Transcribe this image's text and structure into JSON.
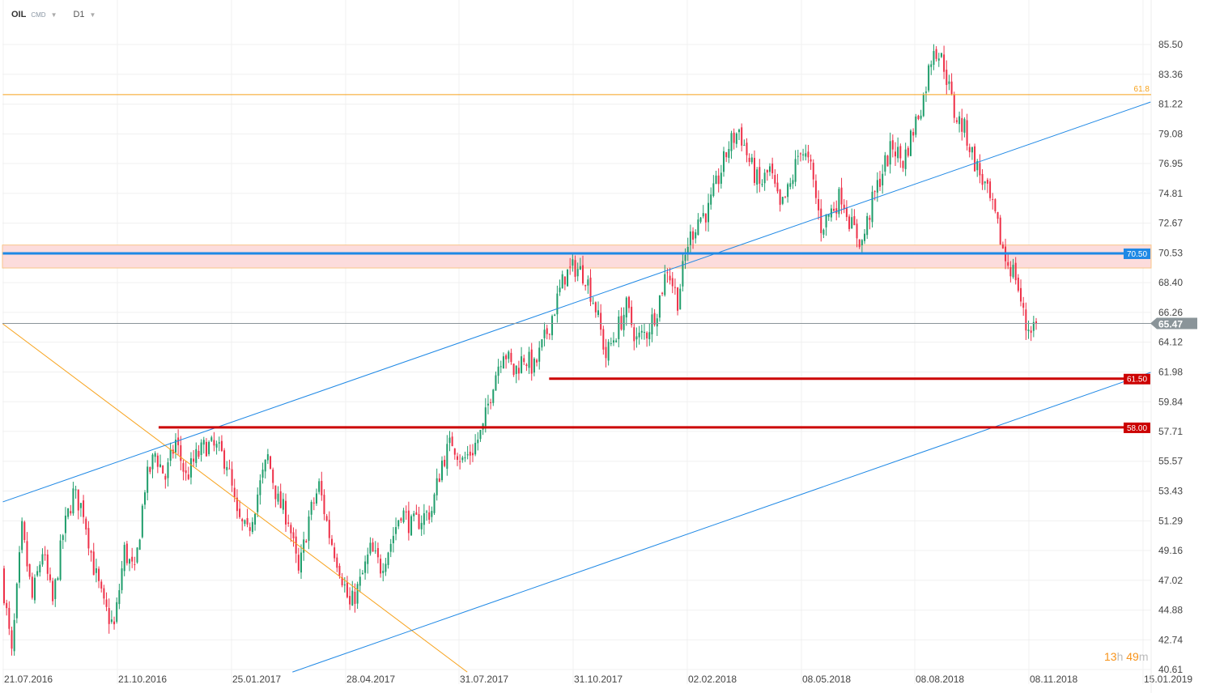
{
  "header": {
    "symbol": "OIL",
    "type": "CMD",
    "timeframe": "D1"
  },
  "countdown": {
    "hours": "13",
    "h_unit": "h",
    "minutes": "49",
    "m_unit": "m"
  },
  "colors": {
    "up": "#1f9d6b",
    "down": "#ee3048",
    "channel": "#1e88e5",
    "fib": "#f7a21b",
    "support": "#cc0000",
    "zone": "#fcdcdc",
    "price_tag": "#8a9499"
  },
  "chart_data": {
    "type": "candlestick",
    "ylim": [
      40.61,
      85.5
    ],
    "y_ticks": [
      "85.50",
      "83.36",
      "81.22",
      "79.08",
      "76.95",
      "74.81",
      "72.67",
      "70.53",
      "68.40",
      "66.26",
      "64.12",
      "61.98",
      "59.84",
      "57.71",
      "55.57",
      "53.43",
      "51.29",
      "49.16",
      "47.02",
      "44.88",
      "42.74",
      "40.61"
    ],
    "x_ticks": [
      {
        "label": "21.07.2016",
        "date": "2016-07-21"
      },
      {
        "label": "21.10.2016",
        "date": "2016-10-21"
      },
      {
        "label": "25.01.2017",
        "date": "2017-01-25"
      },
      {
        "label": "28.04.2017",
        "date": "2017-04-28"
      },
      {
        "label": "31.07.2017",
        "date": "2017-07-31"
      },
      {
        "label": "31.10.2017",
        "date": "2017-10-31"
      },
      {
        "label": "02.02.2018",
        "date": "2018-02-02"
      },
      {
        "label": "08.05.2018",
        "date": "2018-05-08"
      },
      {
        "label": "08.08.2018",
        "date": "2018-08-08"
      },
      {
        "label": "08.11.2018",
        "date": "2018-11-08"
      },
      {
        "label": "15.01.2019",
        "date": "2019-01-15"
      }
    ],
    "grid": true,
    "approx_closes": [
      47.7,
      41.6,
      50.61,
      45.67,
      49.16,
      45.38,
      50.32,
      53.23,
      52.06,
      47.99,
      45.09,
      43.63,
      49.16,
      47.41,
      53.81,
      56.13,
      54.39,
      57.01,
      54.39,
      55.84,
      56.72,
      56.42,
      55.55,
      51.48,
      50.32,
      53.23,
      55.84,
      52.65,
      51.48,
      47.41,
      51.48,
      53.81,
      50.32,
      47.99,
      45.09,
      46.83,
      49.16,
      47.99,
      49.74,
      52.06,
      50.9,
      51.48,
      52.06,
      55.55,
      57.01,
      55.55,
      56.42,
      57.88,
      61.37,
      63.69,
      61.95,
      63.11,
      62.24,
      64.28,
      66.6,
      68.93,
      69.51,
      68.93,
      66.6,
      63.11,
      64.86,
      66.6,
      64.28,
      64.86,
      66.6,
      69.51,
      67.18,
      71.25,
      73.0,
      73.58,
      75.91,
      78.23,
      79.39,
      77.07,
      75.32,
      76.49,
      73.58,
      75.32,
      78.23,
      76.49,
      72.42,
      73.58,
      74.74,
      72.42,
      71.25,
      74.16,
      76.49,
      78.23,
      77.07,
      79.39,
      81.72,
      85.5,
      84.05,
      80.56,
      79.39,
      77.07,
      75.32,
      73.0,
      70.09,
      68.93,
      65.15,
      65.47
    ],
    "current_price": {
      "value": 65.47,
      "label": "65.47"
    },
    "levels": [
      {
        "name": "fib-61.8",
        "price": 81.9,
        "label": "61.8",
        "from": "2016-07-20"
      },
      {
        "name": "resistance-zone",
        "price_low": 69.45,
        "price_high": 71.1
      },
      {
        "name": "level-70.50",
        "price": 70.5,
        "label": "70.50",
        "from": "2016-07-20"
      },
      {
        "name": "support-61.50",
        "price": 61.5,
        "label": "61.50",
        "from": "2017-10-11"
      },
      {
        "name": "support-58.00",
        "price": 58.0,
        "label": "58.00",
        "from": "2016-11-24"
      }
    ],
    "trendlines": [
      {
        "name": "fib-diagonal",
        "color": "fib",
        "from": [
          "2016-07-20",
          65.44
        ],
        "to": [
          "2017-08-06",
          40.43
        ]
      },
      {
        "name": "channel-upper",
        "color": "channel",
        "from": [
          "2016-07-20",
          52.65
        ],
        "to": [
          "2019-01-19",
          81.37
        ]
      },
      {
        "name": "channel-lower",
        "color": "channel",
        "from": [
          "2017-03-15",
          40.43
        ],
        "to": [
          "2019-01-19",
          61.95
        ]
      }
    ]
  }
}
